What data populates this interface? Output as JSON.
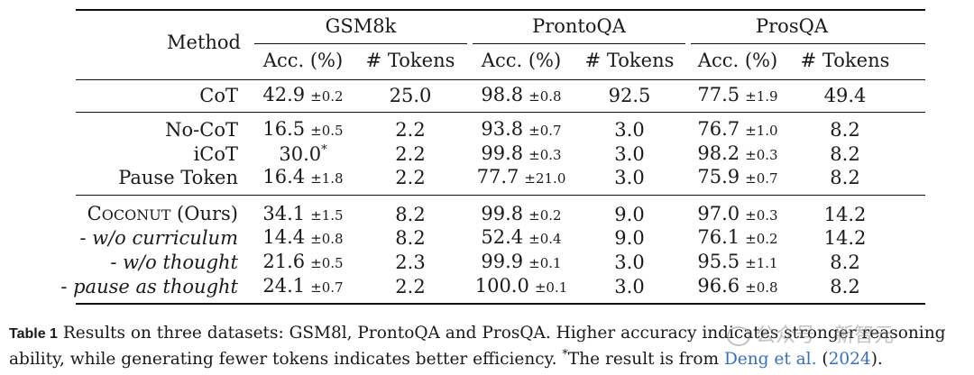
{
  "table": {
    "method_header": "Method",
    "groups": [
      "GSM8k",
      "ProntoQA",
      "ProsQA"
    ],
    "subheaders": [
      "Acc. (%)",
      "# Tokens",
      "Acc. (%)",
      "# Tokens",
      "Acc. (%)",
      "# Tokens"
    ],
    "rows": [
      {
        "method": "CoT",
        "gsm_acc": "42.9",
        "gsm_pm": "±0.2",
        "gsm_tok": "25.0",
        "pron_acc": "98.8",
        "pron_pm": "±0.8",
        "pron_tok": "92.5",
        "pros_acc": "77.5",
        "pros_pm": "±1.9",
        "pros_tok": "49.4"
      },
      {
        "method": "No-CoT",
        "gsm_acc": "16.5",
        "gsm_pm": "±0.5",
        "gsm_tok": "2.2",
        "pron_acc": "93.8",
        "pron_pm": "±0.7",
        "pron_tok": "3.0",
        "pros_acc": "76.7",
        "pros_pm": "±1.0",
        "pros_tok": "8.2"
      },
      {
        "method": "iCoT",
        "gsm_acc": "30.0",
        "gsm_pm": "*",
        "gsm_tok": "2.2",
        "pron_acc": "99.8",
        "pron_pm": "±0.3",
        "pron_tok": "3.0",
        "pros_acc": "98.2",
        "pros_pm": "±0.3",
        "pros_tok": "8.2"
      },
      {
        "method": "Pause Token",
        "gsm_acc": "16.4",
        "gsm_pm": "±1.8",
        "gsm_tok": "2.2",
        "pron_acc": "77.7",
        "pron_pm": "±21.0",
        "pron_tok": "3.0",
        "pros_acc": "75.9",
        "pros_pm": "±0.7",
        "pros_tok": "8.2"
      },
      {
        "method_a": "C",
        "method_b": "OCONUT",
        "method_c": " (Ours)",
        "gsm_acc": "34.1",
        "gsm_pm": "±1.5",
        "gsm_tok": "8.2",
        "pron_acc": "99.8",
        "pron_pm": "±0.2",
        "pron_tok": "9.0",
        "pros_acc": "97.0",
        "pros_pm": "±0.3",
        "pros_tok": "14.2"
      },
      {
        "method": "- w/o curriculum",
        "gsm_acc": "14.4",
        "gsm_pm": "±0.8",
        "gsm_tok": "8.2",
        "pron_acc": "52.4",
        "pron_pm": "±0.4",
        "pron_tok": "9.0",
        "pros_acc": "76.1",
        "pros_pm": "±0.2",
        "pros_tok": "14.2"
      },
      {
        "method": "- w/o thought",
        "gsm_acc": "21.6",
        "gsm_pm": "±0.5",
        "gsm_tok": "2.3",
        "pron_acc": "99.9",
        "pron_pm": "±0.1",
        "pron_tok": "3.0",
        "pros_acc": "95.5",
        "pros_pm": "±1.1",
        "pros_tok": "8.2"
      },
      {
        "method": "- pause as thought",
        "gsm_acc": "24.1",
        "gsm_pm": "±0.7",
        "gsm_tok": "2.2",
        "pron_acc": "100.0",
        "pron_pm": "±0.1",
        "pron_tok": "3.0",
        "pros_acc": "96.6",
        "pros_pm": "±0.8",
        "pros_tok": "8.2"
      }
    ]
  },
  "caption": {
    "label": "Table 1",
    "text1": " Results on three datasets: GSM8l, ProntoQA and ProsQA. Higher accuracy indicates stronger reasoning ability, while generating fewer tokens indicates better efficiency. ",
    "star": "*",
    "text2": "The result is from ",
    "cite_name": "Deng et al.",
    "cite_open": " (",
    "cite_year": "2024",
    "cite_close": ")."
  },
  "watermark": {
    "text": "公众号 · 新智元"
  }
}
